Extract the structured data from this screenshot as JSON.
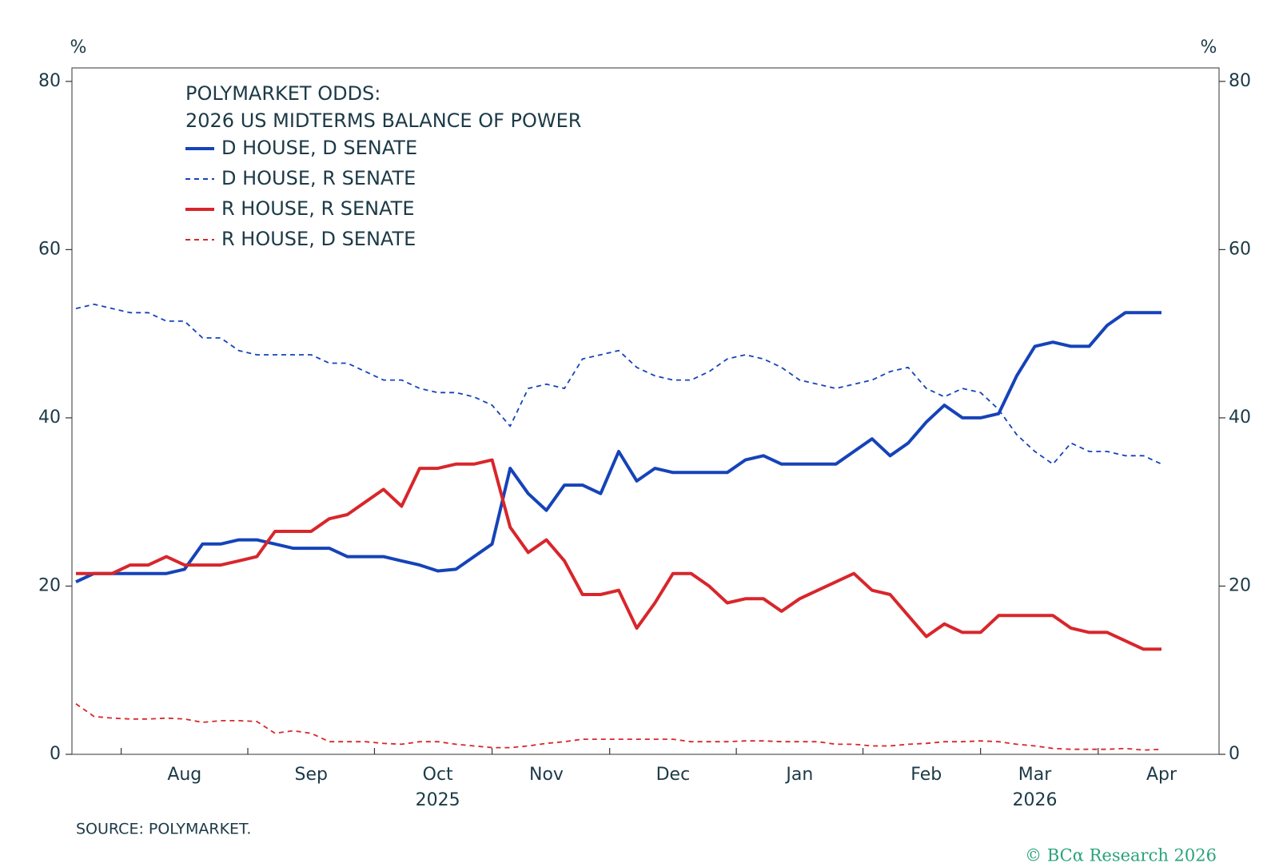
{
  "chart_data": {
    "type": "line",
    "title": "POLYMARKET ODDS:",
    "subtitle": "2026 US MIDTERMS BALANCE OF POWER",
    "y_unit": "%",
    "y2_unit": "%",
    "source": "SOURCE: POLYMARKET.",
    "credit": "© BCα Research 2026",
    "years": [
      "2025",
      "2026"
    ],
    "categories": [
      null,
      null,
      null,
      null,
      null,
      null,
      "Aug",
      null,
      null,
      null,
      null,
      null,
      null,
      "Sep",
      null,
      null,
      null,
      null,
      null,
      null,
      "Oct",
      null,
      null,
      null,
      null,
      null,
      "Nov",
      null,
      null,
      null,
      null,
      null,
      null,
      "Dec",
      null,
      null,
      null,
      null,
      null,
      null,
      "Jan",
      null,
      null,
      null,
      null,
      null,
      null,
      "Feb",
      null,
      null,
      null,
      null,
      null,
      "Mar",
      null,
      null,
      null,
      null,
      null,
      null,
      "Apr"
    ],
    "ylim": [
      0,
      81.6
    ],
    "yticks": [
      0,
      20,
      40,
      60,
      80
    ],
    "y2lim": [
      0,
      81.6
    ],
    "y2ticks": [
      0,
      20,
      40,
      60,
      80
    ],
    "series": [
      {
        "name": "D HOUSE, D SENATE",
        "color": "#1543b8",
        "dashed": false,
        "values": [
          20.5,
          21.5,
          21.5,
          21.5,
          21.5,
          21.5,
          22,
          25,
          25,
          25.5,
          25.5,
          25,
          24.5,
          24.5,
          24.5,
          23.5,
          23.5,
          23.5,
          23,
          22.5,
          21.8,
          22,
          23.5,
          25,
          34,
          31,
          29,
          32,
          32,
          31,
          36,
          32.5,
          34,
          33.5,
          33.5,
          33.5,
          33.5,
          35,
          35.5,
          34.5,
          34.5,
          34.5,
          34.5,
          36,
          37.5,
          35.5,
          37,
          39.5,
          41.5,
          40,
          40,
          40.5,
          45,
          48.5,
          49,
          48.5,
          48.5,
          51,
          52.5,
          52.5,
          52.5
        ]
      },
      {
        "name": "D HOUSE, R SENATE",
        "color": "#1543b8",
        "dashed": true,
        "values": [
          53,
          53.5,
          53,
          52.5,
          52.5,
          51.5,
          51.5,
          49.5,
          49.5,
          48,
          47.5,
          47.5,
          47.5,
          47.5,
          46.5,
          46.5,
          45.5,
          44.5,
          44.5,
          43.5,
          43,
          43,
          42.5,
          41.5,
          39,
          43.5,
          44,
          43.5,
          47,
          47.5,
          48,
          46,
          45,
          44.5,
          44.5,
          45.5,
          47,
          47.5,
          47,
          46,
          44.5,
          44,
          43.5,
          44,
          44.5,
          45.5,
          46,
          43.5,
          42.5,
          43.5,
          43,
          41,
          38,
          36,
          34.5,
          37,
          36,
          36,
          35.5,
          35.5,
          34.5
        ]
      },
      {
        "name": "R HOUSE, R SENATE",
        "color": "#d8262b",
        "dashed": false,
        "values": [
          21.5,
          21.5,
          21.5,
          22.5,
          22.5,
          23.5,
          22.5,
          22.5,
          22.5,
          23,
          23.5,
          26.5,
          26.5,
          26.5,
          28,
          28.5,
          30,
          31.5,
          29.5,
          34,
          34,
          34.5,
          34.5,
          35,
          27,
          24,
          25.5,
          23,
          19,
          19,
          19.5,
          15,
          18,
          21.5,
          21.5,
          20,
          18,
          18.5,
          18.5,
          17,
          18.5,
          19.5,
          20.5,
          21.5,
          19.5,
          19,
          16.5,
          14,
          15.5,
          14.5,
          14.5,
          16.5,
          16.5,
          16.5,
          16.5,
          15,
          14.5,
          14.5,
          13.5,
          12.5,
          12.5
        ]
      },
      {
        "name": "R HOUSE, D SENATE",
        "color": "#d8262b",
        "dashed": true,
        "values": [
          6,
          4.5,
          4.3,
          4.2,
          4.2,
          4.3,
          4.2,
          3.8,
          4,
          4,
          3.9,
          2.5,
          2.8,
          2.5,
          1.5,
          1.5,
          1.5,
          1.3,
          1.2,
          1.5,
          1.5,
          1.2,
          1.0,
          0.8,
          0.8,
          1.0,
          1.3,
          1.5,
          1.8,
          1.8,
          1.8,
          1.8,
          1.8,
          1.8,
          1.5,
          1.5,
          1.5,
          1.6,
          1.6,
          1.5,
          1.5,
          1.5,
          1.2,
          1.2,
          1.0,
          1.0,
          1.2,
          1.3,
          1.5,
          1.5,
          1.6,
          1.5,
          1.2,
          1.0,
          0.7,
          0.6,
          0.6,
          0.6,
          0.7,
          0.5,
          0.6
        ]
      }
    ]
  }
}
